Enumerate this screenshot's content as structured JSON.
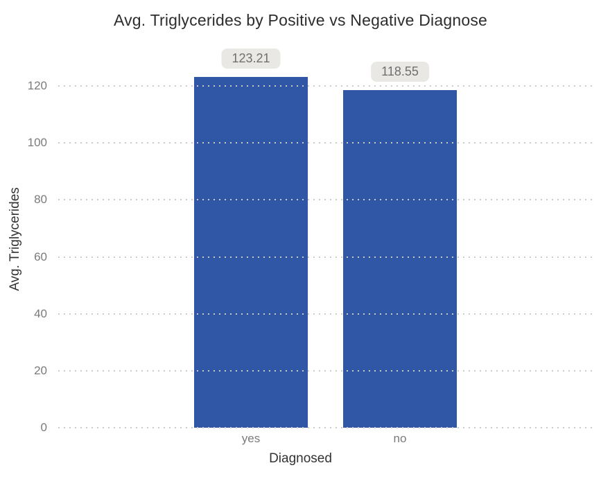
{
  "chart_data": {
    "type": "bar",
    "title": "Avg. Triglycerides by Positive vs Negative Diagnose",
    "xlabel": "Diagnosed",
    "ylabel": "Avg. Triglycerides",
    "categories": [
      "yes",
      "no"
    ],
    "values": [
      123.21,
      118.55
    ],
    "value_labels": [
      "123.21",
      "118.55"
    ],
    "yticks": [
      0,
      20,
      40,
      60,
      80,
      100,
      120
    ],
    "ylim": [
      0,
      135
    ],
    "grid": "horizontal-dotted",
    "legend": "none",
    "colors": {
      "bar": "#3056a6",
      "value_label_bg": "#e9e8e5",
      "value_label_text": "#6f6f6f",
      "tick_text": "#7a7a7a",
      "axis_title_text": "#333333",
      "title_text": "#2d2d2d",
      "gridline": "#cbcbcb",
      "background": "#ffffff"
    }
  }
}
